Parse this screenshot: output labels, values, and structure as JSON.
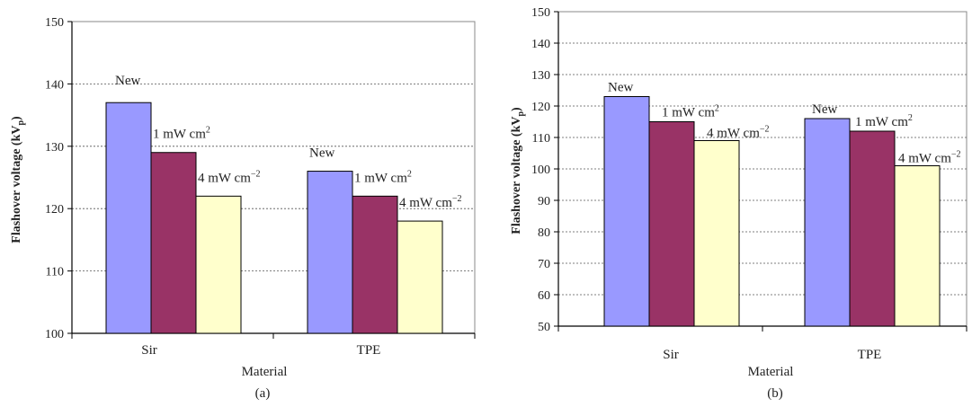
{
  "colors": {
    "new": "#9999ff",
    "one_mw": "#993366",
    "four_mw": "#ffffcc"
  },
  "chart_data": [
    {
      "type": "bar",
      "panel_label": "(a)",
      "xlabel": "Material",
      "ylabel": "Flashover voltage (kV",
      "ylabel_sub": "p",
      "ylabel_end": ")",
      "ylim": [
        100,
        150
      ],
      "yticks": [
        "100",
        "110",
        "120",
        "130",
        "140",
        "150"
      ],
      "categories": [
        "Sir",
        "TPE"
      ],
      "series": [
        {
          "key": "new",
          "values": [
            137,
            126
          ],
          "labels": [
            "New",
            "New"
          ]
        },
        {
          "key": "one_mw",
          "values": [
            129,
            122
          ],
          "labels": [
            "1 mW cm2",
            "1 mW cm2"
          ]
        },
        {
          "key": "four_mw",
          "values": [
            122,
            118
          ],
          "labels": [
            "4 mW cm−2",
            "4 mW cm−2"
          ]
        }
      ],
      "grid": true
    },
    {
      "type": "bar",
      "panel_label": "(b)",
      "xlabel": "Material",
      "ylabel": "Flashover voltage (kV",
      "ylabel_sub": "p",
      "ylabel_end": ")",
      "ylim": [
        50,
        150
      ],
      "yticks": [
        "50",
        "60",
        "70",
        "80",
        "90",
        "100",
        "110",
        "120",
        "130",
        "140",
        "150"
      ],
      "categories": [
        "Sir",
        "TPE"
      ],
      "series": [
        {
          "key": "new",
          "values": [
            123,
            116
          ],
          "labels": [
            "New",
            "New"
          ]
        },
        {
          "key": "one_mw",
          "values": [
            115,
            112
          ],
          "labels": [
            "1 mW cm2",
            "1 mW cm2"
          ]
        },
        {
          "key": "four_mw",
          "values": [
            109,
            101
          ],
          "labels": [
            "4 mW cm−2",
            "4 mW cm−2"
          ]
        }
      ],
      "grid": true
    }
  ]
}
